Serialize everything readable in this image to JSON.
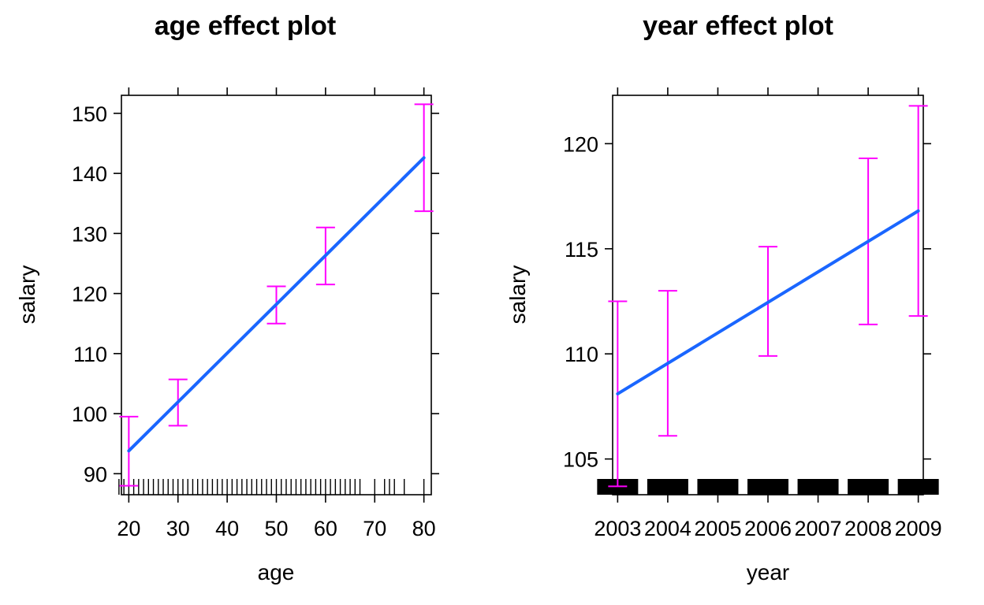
{
  "colors": {
    "fit_line": "#1A66FF",
    "ci": "#FF00FF",
    "axes": "#000000"
  },
  "chart_data": [
    {
      "type": "line",
      "title": "age effect plot",
      "xlabel": "age",
      "ylabel": "salary",
      "xlim": [
        18.5,
        81.5
      ],
      "ylim": [
        86.5,
        153
      ],
      "xticks": [
        20,
        30,
        40,
        50,
        60,
        70,
        80
      ],
      "xtick_labels": [
        "20",
        "30",
        "40",
        "50",
        "60",
        "70",
        "80"
      ],
      "yticks": [
        90,
        100,
        110,
        120,
        130,
        140,
        150
      ],
      "ytick_labels": [
        "90",
        "100",
        "110",
        "120",
        "130",
        "140",
        "150"
      ],
      "x_ticks_top": [
        20,
        30,
        40,
        50,
        60,
        70,
        80
      ],
      "y_ticks_right": [
        90,
        100,
        110,
        120,
        130,
        140,
        150
      ],
      "fit": {
        "x": [
          20,
          80
        ],
        "y": [
          93.8,
          142.6
        ]
      },
      "errorbars": [
        {
          "x": 20,
          "fit": 93.8,
          "lower": 88.0,
          "upper": 99.5
        },
        {
          "x": 30,
          "fit": 101.9,
          "lower": 98.0,
          "upper": 105.7
        },
        {
          "x": 50,
          "fit": 118.1,
          "lower": 115.0,
          "upper": 121.2
        },
        {
          "x": 60,
          "fit": 126.3,
          "lower": 121.5,
          "upper": 131.0
        },
        {
          "x": 80,
          "fit": 142.6,
          "lower": 133.7,
          "upper": 151.5
        }
      ],
      "rug": [
        18,
        19,
        20,
        21,
        22,
        23,
        24,
        25,
        26,
        27,
        28,
        29,
        30,
        31,
        32,
        33,
        34,
        35,
        36,
        37,
        38,
        39,
        40,
        41,
        42,
        43,
        44,
        45,
        46,
        47,
        48,
        49,
        50,
        51,
        52,
        53,
        54,
        55,
        56,
        57,
        58,
        59,
        60,
        61,
        62,
        63,
        64,
        65,
        66,
        67,
        70,
        72,
        73,
        74,
        76,
        80
      ],
      "grid": false
    },
    {
      "type": "line",
      "title": "year effect plot",
      "xlabel": "year",
      "ylabel": "salary",
      "xlim": [
        2002.9,
        2009.1
      ],
      "ylim": [
        103.3,
        122.3
      ],
      "xticks": [
        2003,
        2004,
        2005,
        2006,
        2007,
        2008,
        2009
      ],
      "xtick_labels": [
        "2003",
        "2004",
        "2005",
        "2006",
        "2007",
        "2008",
        "2009"
      ],
      "yticks": [
        105,
        110,
        115,
        120
      ],
      "ytick_labels": [
        "105",
        "110",
        "115",
        "120"
      ],
      "x_ticks_top": [
        2003,
        2004,
        2005,
        2006,
        2007,
        2008,
        2009
      ],
      "y_ticks_right": [
        105,
        110,
        115,
        120
      ],
      "fit": {
        "x": [
          2003,
          2009
        ],
        "y": [
          108.1,
          116.8
        ]
      },
      "errorbars": [
        {
          "x": 2003,
          "fit": 108.1,
          "lower": 103.7,
          "upper": 112.5
        },
        {
          "x": 2004,
          "fit": 109.6,
          "lower": 106.1,
          "upper": 113.0
        },
        {
          "x": 2006,
          "fit": 112.5,
          "lower": 109.9,
          "upper": 115.1
        },
        {
          "x": 2008,
          "fit": 115.4,
          "lower": 111.4,
          "upper": 119.3
        },
        {
          "x": 2009,
          "fit": 116.8,
          "lower": 111.8,
          "upper": 121.8
        }
      ],
      "rug_blocks": [
        2003,
        2004,
        2005,
        2006,
        2007,
        2008,
        2009
      ],
      "grid": false
    }
  ]
}
